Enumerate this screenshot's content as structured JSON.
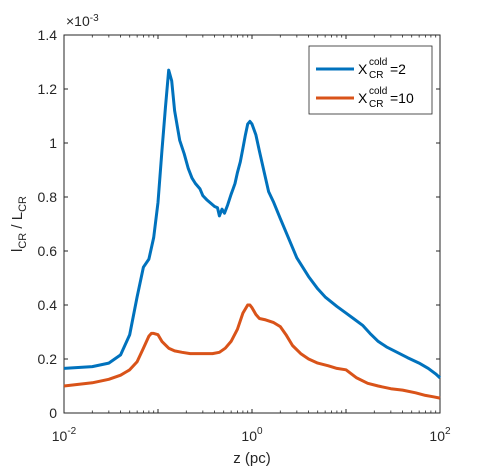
{
  "chart_data": {
    "type": "line",
    "xscale": "log",
    "xlim": [
      0.01,
      100
    ],
    "ylim": [
      0,
      0.0014
    ],
    "xlabel": {
      "main": "z (pc)"
    },
    "ylabel": {
      "p1": "l",
      "s1": "CR",
      "p2": " / L",
      "s2": "CR"
    },
    "y_exponent_label": {
      "base": "×10",
      "exp": "-3"
    },
    "x_ticks": [
      {
        "value": 0.01,
        "base": "10",
        "exp": "-2"
      },
      {
        "value": 1,
        "base": "10",
        "exp": "0"
      },
      {
        "value": 100,
        "base": "10",
        "exp": "2"
      }
    ],
    "y_ticks": [
      {
        "value": 0,
        "label": "0"
      },
      {
        "value": 0.0002,
        "label": "0.2"
      },
      {
        "value": 0.0004,
        "label": "0.4"
      },
      {
        "value": 0.0006,
        "label": "0.6"
      },
      {
        "value": 0.0008,
        "label": "0.8"
      },
      {
        "value": 0.001,
        "label": "1"
      },
      {
        "value": 0.0012,
        "label": "1.2"
      },
      {
        "value": 0.0014,
        "label": "1.4"
      }
    ],
    "grid": false,
    "legend_position": "top-right",
    "series": [
      {
        "legend": {
          "base": "X",
          "sup": "cold",
          "sub": "CR",
          "rest": "=2"
        },
        "color": "#0072BD",
        "points": [
          [
            0.01,
            0.000165
          ],
          [
            0.02,
            0.000172
          ],
          [
            0.03,
            0.000185
          ],
          [
            0.04,
            0.000215
          ],
          [
            0.05,
            0.00029
          ],
          [
            0.06,
            0.00043
          ],
          [
            0.07,
            0.00054
          ],
          [
            0.08,
            0.00057
          ],
          [
            0.09,
            0.00065
          ],
          [
            0.1,
            0.00078
          ],
          [
            0.11,
            0.00097
          ],
          [
            0.12,
            0.00113
          ],
          [
            0.13,
            0.00127
          ],
          [
            0.14,
            0.00123
          ],
          [
            0.15,
            0.00112
          ],
          [
            0.17,
            0.00101
          ],
          [
            0.19,
            0.00096
          ],
          [
            0.21,
            0.000905
          ],
          [
            0.23,
            0.00087
          ],
          [
            0.25,
            0.00085
          ],
          [
            0.28,
            0.00083
          ],
          [
            0.3,
            0.000805
          ],
          [
            0.33,
            0.00079
          ],
          [
            0.37,
            0.000775
          ],
          [
            0.4,
            0.000765
          ],
          [
            0.43,
            0.00076
          ],
          [
            0.45,
            0.00073
          ],
          [
            0.48,
            0.000755
          ],
          [
            0.51,
            0.00074
          ],
          [
            0.55,
            0.00077
          ],
          [
            0.6,
            0.00081
          ],
          [
            0.63,
            0.00083
          ],
          [
            0.66,
            0.00085
          ],
          [
            0.7,
            0.00089
          ],
          [
            0.75,
            0.00093
          ],
          [
            0.8,
            0.00098
          ],
          [
            0.85,
            0.00103
          ],
          [
            0.9,
            0.00107
          ],
          [
            0.95,
            0.00108
          ],
          [
            1.0,
            0.00107
          ],
          [
            1.1,
            0.00103
          ],
          [
            1.2,
            0.00097
          ],
          [
            1.35,
            0.00089
          ],
          [
            1.5,
            0.00082
          ],
          [
            1.7,
            0.00078
          ],
          [
            2.0,
            0.00072
          ],
          [
            2.5,
            0.00064
          ],
          [
            3.0,
            0.000575
          ],
          [
            4.0,
            0.000505
          ],
          [
            5.0,
            0.00046
          ],
          [
            6.0,
            0.00043
          ],
          [
            8.0,
            0.000395
          ],
          [
            10.0,
            0.00037
          ],
          [
            12.0,
            0.00035
          ],
          [
            15.0,
            0.000325
          ],
          [
            18.0,
            0.000295
          ],
          [
            22.0,
            0.000265
          ],
          [
            27.0,
            0.000245
          ],
          [
            35.0,
            0.000225
          ],
          [
            45.0,
            0.000205
          ],
          [
            60.0,
            0.000185
          ],
          [
            75.0,
            0.000165
          ],
          [
            90.0,
            0.000145
          ],
          [
            100.0,
            0.00013
          ]
        ]
      },
      {
        "legend": {
          "base": "X",
          "sup": "cold",
          "sub": "CR",
          "rest": "=10"
        },
        "color": "#D95319",
        "points": [
          [
            0.01,
            0.0001
          ],
          [
            0.02,
            0.000112
          ],
          [
            0.03,
            0.000125
          ],
          [
            0.04,
            0.00014
          ],
          [
            0.05,
            0.00016
          ],
          [
            0.06,
            0.00019
          ],
          [
            0.07,
            0.00024
          ],
          [
            0.08,
            0.000285
          ],
          [
            0.085,
            0.000295
          ],
          [
            0.09,
            0.000295
          ],
          [
            0.1,
            0.00029
          ],
          [
            0.11,
            0.000265
          ],
          [
            0.13,
            0.00024
          ],
          [
            0.15,
            0.00023
          ],
          [
            0.18,
            0.000225
          ],
          [
            0.22,
            0.00022
          ],
          [
            0.3,
            0.00022
          ],
          [
            0.38,
            0.00022
          ],
          [
            0.45,
            0.000225
          ],
          [
            0.52,
            0.00024
          ],
          [
            0.6,
            0.000265
          ],
          [
            0.7,
            0.00031
          ],
          [
            0.8,
            0.00037
          ],
          [
            0.9,
            0.0004
          ],
          [
            0.95,
            0.0004
          ],
          [
            1.0,
            0.00039
          ],
          [
            1.1,
            0.000365
          ],
          [
            1.2,
            0.00035
          ],
          [
            1.4,
            0.000345
          ],
          [
            1.7,
            0.000335
          ],
          [
            2.0,
            0.00032
          ],
          [
            2.3,
            0.00029
          ],
          [
            2.7,
            0.00025
          ],
          [
            3.3,
            0.00022
          ],
          [
            4.0,
            0.0002
          ],
          [
            5.0,
            0.000185
          ],
          [
            6.5,
            0.000175
          ],
          [
            8.0,
            0.000165
          ],
          [
            10.0,
            0.00016
          ],
          [
            13.0,
            0.00013
          ],
          [
            17.0,
            0.00011
          ],
          [
            22.0,
            0.0001
          ],
          [
            30.0,
            9e-05
          ],
          [
            40.0,
            8.5e-05
          ],
          [
            55.0,
            7.5e-05
          ],
          [
            70.0,
            6.5e-05
          ],
          [
            85.0,
            6e-05
          ],
          [
            100.0,
            5.5e-05
          ]
        ]
      }
    ]
  }
}
